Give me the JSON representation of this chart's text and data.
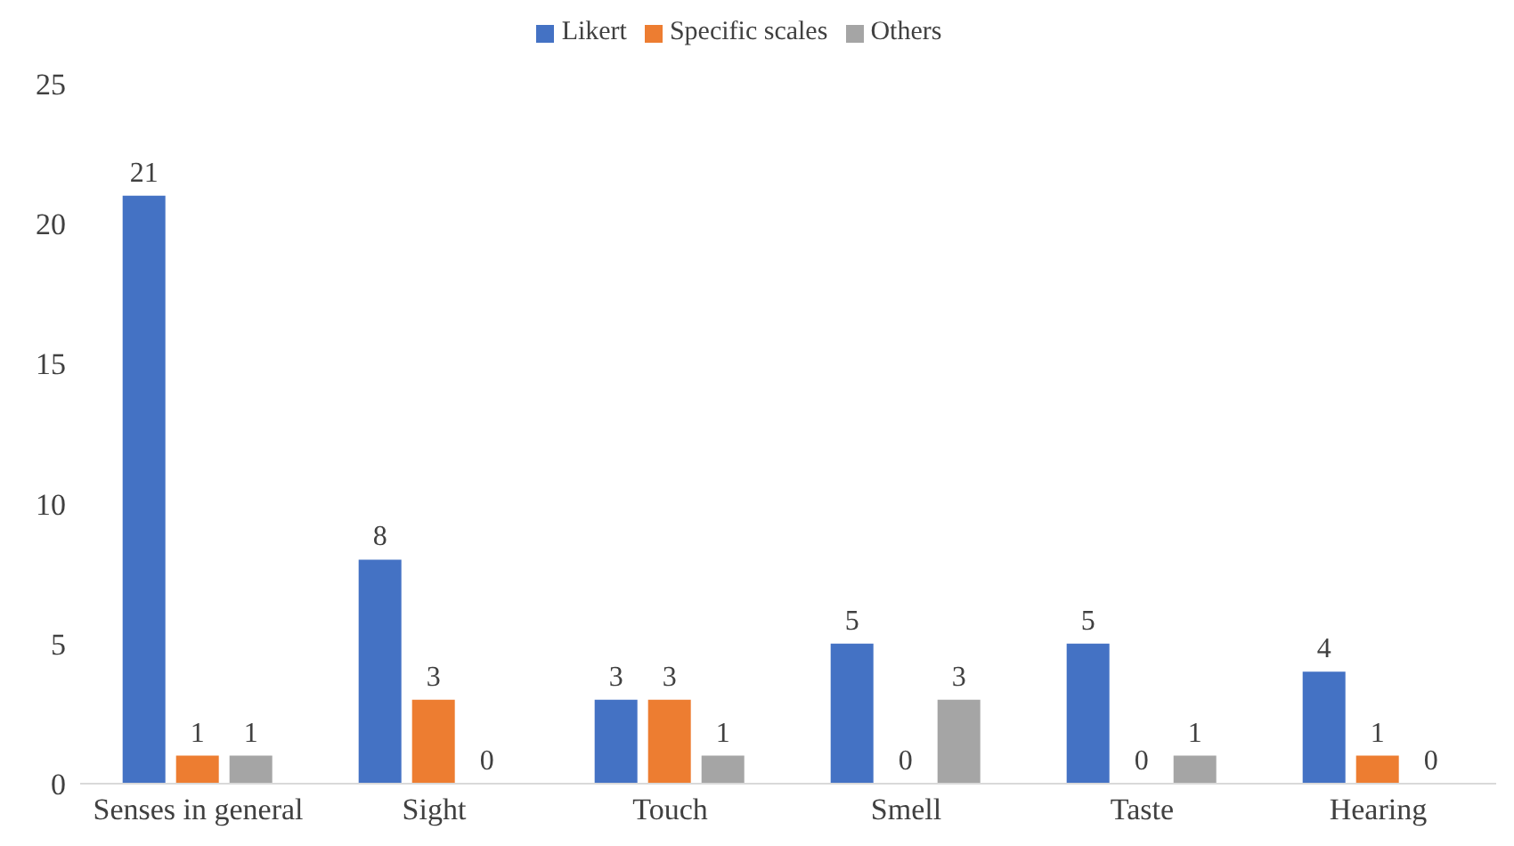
{
  "chart_data": {
    "type": "bar",
    "categories": [
      "Senses in general",
      "Sight",
      "Touch",
      "Smell",
      "Taste",
      "Hearing"
    ],
    "series": [
      {
        "name": "Likert",
        "color": "#4472c4",
        "values": [
          21,
          8,
          3,
          5,
          5,
          4
        ]
      },
      {
        "name": "Specific scales",
        "color": "#ed7d31",
        "values": [
          1,
          3,
          3,
          0,
          0,
          1
        ]
      },
      {
        "name": "Others",
        "color": "#a5a5a5",
        "values": [
          1,
          0,
          1,
          3,
          1,
          0
        ]
      }
    ],
    "ylim": [
      0,
      25
    ],
    "yticks": [
      0,
      5,
      10,
      15,
      20,
      25
    ],
    "grid": false,
    "legend": "top",
    "data_labels": true
  }
}
